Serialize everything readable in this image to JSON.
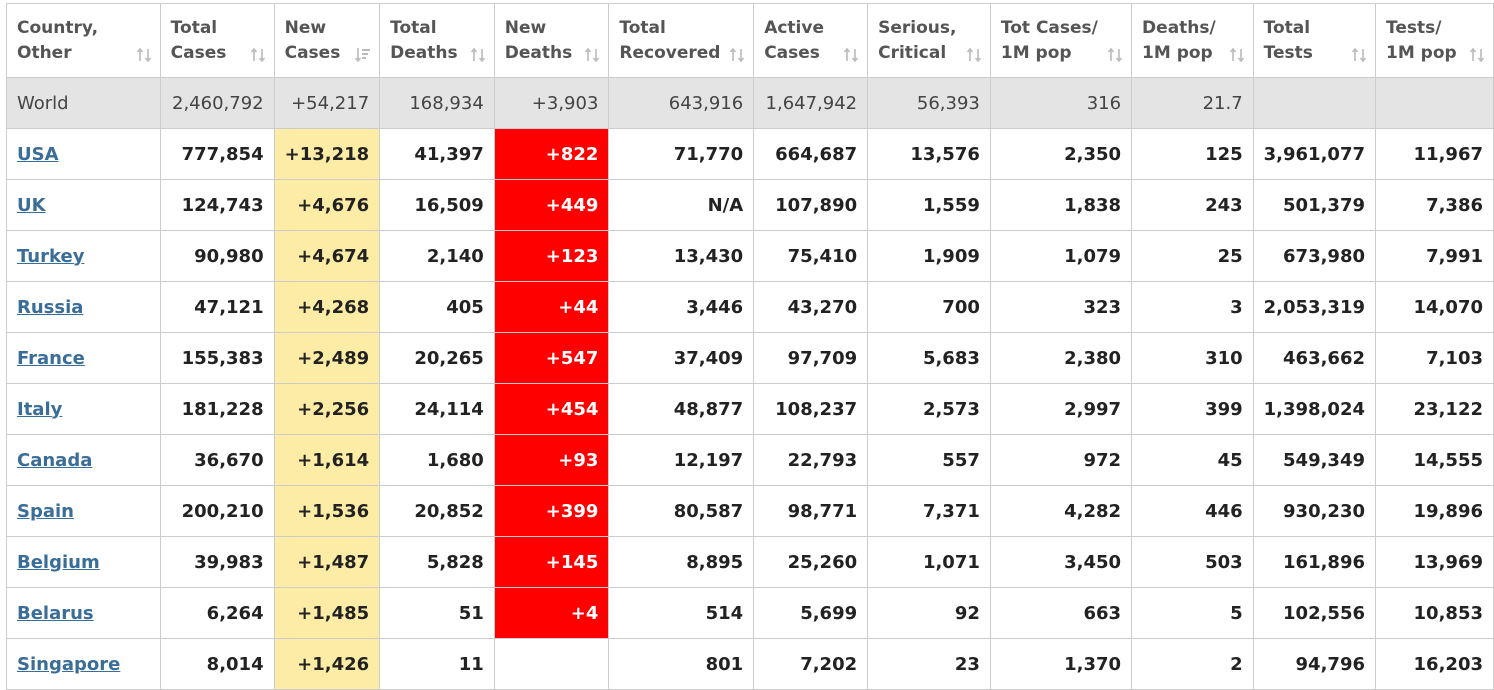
{
  "colors": {
    "new_cases_bg": "#fdeca6",
    "new_deaths_bg": "#ff0000",
    "world_row_bg": "#e4e4e4",
    "link": "#3a6d97"
  },
  "headers": [
    {
      "label": "Country,\nOther",
      "icon": "sort-both-icon"
    },
    {
      "label": "Total\nCases",
      "icon": "sort-both-icon"
    },
    {
      "label": "New\nCases",
      "icon": "sort-desc-icon"
    },
    {
      "label": "Total\nDeaths",
      "icon": "sort-both-icon"
    },
    {
      "label": "New\nDeaths",
      "icon": "sort-both-icon"
    },
    {
      "label": "Total\nRecovered",
      "icon": "sort-both-icon"
    },
    {
      "label": "Active\nCases",
      "icon": "sort-both-icon"
    },
    {
      "label": "Serious,\nCritical",
      "icon": "sort-both-icon"
    },
    {
      "label": "Tot Cases/\n1M pop",
      "icon": "sort-both-icon"
    },
    {
      "label": "Deaths/\n1M pop",
      "icon": "sort-both-icon"
    },
    {
      "label": "Total\nTests",
      "icon": "sort-both-icon"
    },
    {
      "label": "Tests/\n1M pop",
      "icon": "sort-both-icon"
    }
  ],
  "world": [
    "World",
    "2,460,792",
    "+54,217",
    "168,934",
    "+3,903",
    "643,916",
    "1,647,942",
    "56,393",
    "316",
    "21.7",
    "",
    ""
  ],
  "rows": [
    [
      "USA",
      "777,854",
      "+13,218",
      "41,397",
      "+822",
      "71,770",
      "664,687",
      "13,576",
      "2,350",
      "125",
      "3,961,077",
      "11,967"
    ],
    [
      "UK",
      "124,743",
      "+4,676",
      "16,509",
      "+449",
      "N/A",
      "107,890",
      "1,559",
      "1,838",
      "243",
      "501,379",
      "7,386"
    ],
    [
      "Turkey",
      "90,980",
      "+4,674",
      "2,140",
      "+123",
      "13,430",
      "75,410",
      "1,909",
      "1,079",
      "25",
      "673,980",
      "7,991"
    ],
    [
      "Russia",
      "47,121",
      "+4,268",
      "405",
      "+44",
      "3,446",
      "43,270",
      "700",
      "323",
      "3",
      "2,053,319",
      "14,070"
    ],
    [
      "France",
      "155,383",
      "+2,489",
      "20,265",
      "+547",
      "37,409",
      "97,709",
      "5,683",
      "2,380",
      "310",
      "463,662",
      "7,103"
    ],
    [
      "Italy",
      "181,228",
      "+2,256",
      "24,114",
      "+454",
      "48,877",
      "108,237",
      "2,573",
      "2,997",
      "399",
      "1,398,024",
      "23,122"
    ],
    [
      "Canada",
      "36,670",
      "+1,614",
      "1,680",
      "+93",
      "12,197",
      "22,793",
      "557",
      "972",
      "45",
      "549,349",
      "14,555"
    ],
    [
      "Spain",
      "200,210",
      "+1,536",
      "20,852",
      "+399",
      "80,587",
      "98,771",
      "7,371",
      "4,282",
      "446",
      "930,230",
      "19,896"
    ],
    [
      "Belgium",
      "39,983",
      "+1,487",
      "5,828",
      "+145",
      "8,895",
      "25,260",
      "1,071",
      "3,450",
      "503",
      "161,896",
      "13,969"
    ],
    [
      "Belarus",
      "6,264",
      "+1,485",
      "51",
      "+4",
      "514",
      "5,699",
      "92",
      "663",
      "5",
      "102,556",
      "10,853"
    ],
    [
      "Singapore",
      "8,014",
      "+1,426",
      "11",
      "",
      "801",
      "7,202",
      "23",
      "1,370",
      "2",
      "94,796",
      "16,203"
    ]
  ]
}
